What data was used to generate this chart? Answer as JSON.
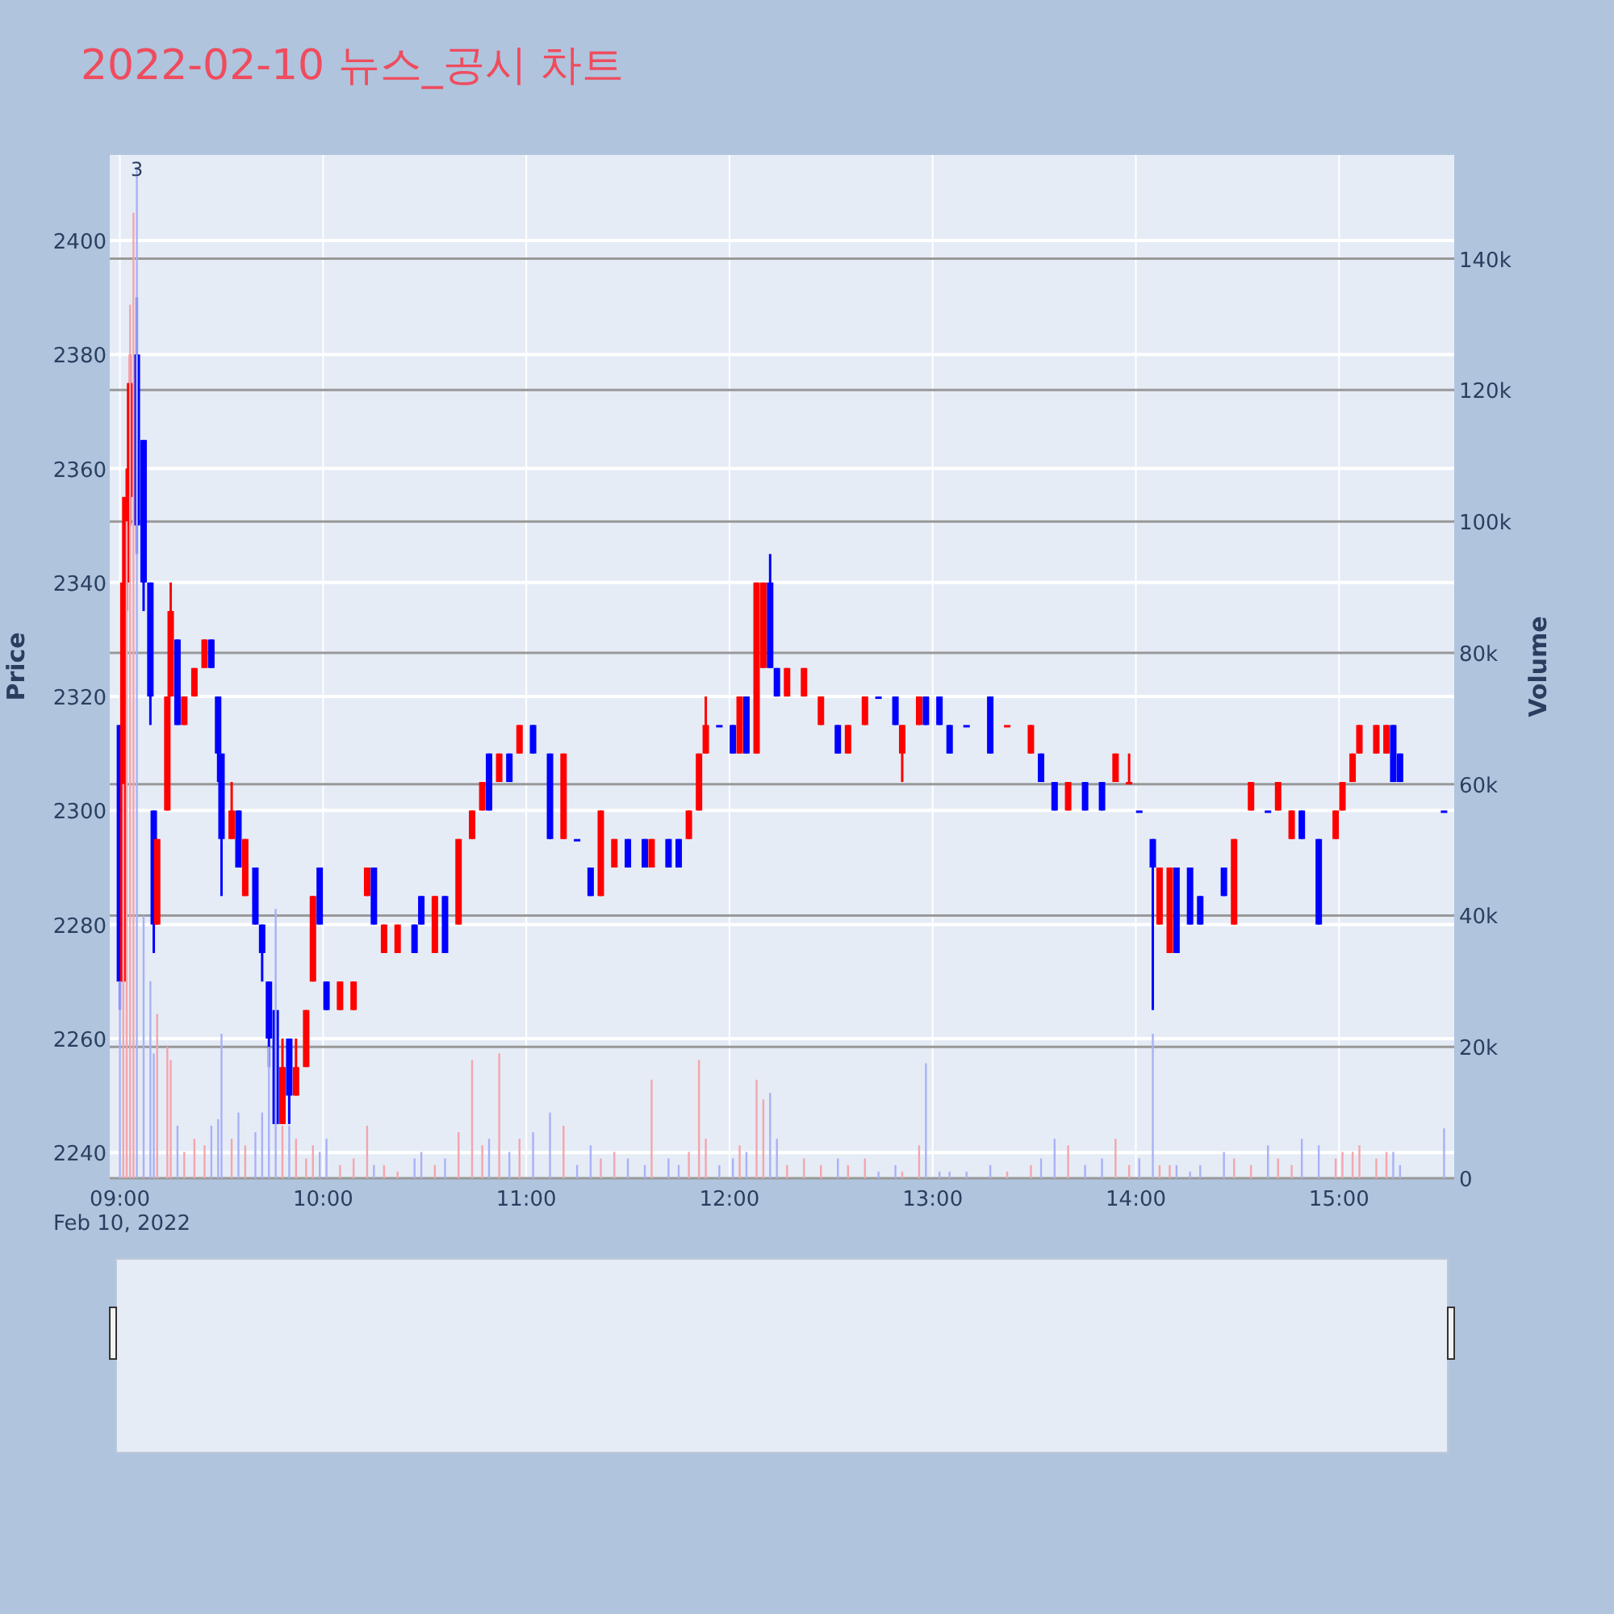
{
  "chart_data": {
    "type": "candlestick",
    "title": "2022-02-10 뉴스_공시 차트",
    "ylabel": "Price",
    "y2label": "Volume",
    "x": [
      "2022-02-10T09:00",
      "2022-02-10T09:01",
      "2022-02-10T09:02",
      "2022-02-10T09:03",
      "2022-02-10T09:04",
      "2022-02-10T09:05",
      "2022-02-10T09:07",
      "2022-02-10T09:09",
      "2022-02-10T09:10",
      "2022-02-10T09:11",
      "2022-02-10T09:14",
      "2022-02-10T09:15",
      "2022-02-10T09:17",
      "2022-02-10T09:19",
      "2022-02-10T09:22",
      "2022-02-10T09:25",
      "2022-02-10T09:27",
      "2022-02-10T09:29",
      "2022-02-10T09:30",
      "2022-02-10T09:33",
      "2022-02-10T09:35",
      "2022-02-10T09:37",
      "2022-02-10T09:40",
      "2022-02-10T09:42",
      "2022-02-10T09:44",
      "2022-02-10T09:46",
      "2022-02-10T09:48",
      "2022-02-10T09:50",
      "2022-02-10T09:52",
      "2022-02-10T09:55",
      "2022-02-10T09:57",
      "2022-02-10T09:59",
      "2022-02-10T10:01",
      "2022-02-10T10:05",
      "2022-02-10T10:09",
      "2022-02-10T10:13",
      "2022-02-10T10:15",
      "2022-02-10T10:18",
      "2022-02-10T10:22",
      "2022-02-10T10:27",
      "2022-02-10T10:29",
      "2022-02-10T10:33",
      "2022-02-10T10:36",
      "2022-02-10T10:40",
      "2022-02-10T10:44",
      "2022-02-10T10:47",
      "2022-02-10T10:49",
      "2022-02-10T10:52",
      "2022-02-10T10:55",
      "2022-02-10T10:58",
      "2022-02-10T11:02",
      "2022-02-10T11:07",
      "2022-02-10T11:11",
      "2022-02-10T11:15",
      "2022-02-10T11:19",
      "2022-02-10T11:22",
      "2022-02-10T11:26",
      "2022-02-10T11:30",
      "2022-02-10T11:35",
      "2022-02-10T11:37",
      "2022-02-10T11:42",
      "2022-02-10T11:45",
      "2022-02-10T11:48",
      "2022-02-10T11:51",
      "2022-02-10T11:53",
      "2022-02-10T11:57",
      "2022-02-10T12:01",
      "2022-02-10T12:03",
      "2022-02-10T12:05",
      "2022-02-10T12:08",
      "2022-02-10T12:10",
      "2022-02-10T12:12",
      "2022-02-10T12:14",
      "2022-02-10T12:17",
      "2022-02-10T12:22",
      "2022-02-10T12:27",
      "2022-02-10T12:32",
      "2022-02-10T12:35",
      "2022-02-10T12:40",
      "2022-02-10T12:44",
      "2022-02-10T12:49",
      "2022-02-10T12:51",
      "2022-02-10T12:56",
      "2022-02-10T12:58",
      "2022-02-10T13:02",
      "2022-02-10T13:05",
      "2022-02-10T13:10",
      "2022-02-10T13:17",
      "2022-02-10T13:22",
      "2022-02-10T13:29",
      "2022-02-10T13:32",
      "2022-02-10T13:36",
      "2022-02-10T13:40",
      "2022-02-10T13:45",
      "2022-02-10T13:50",
      "2022-02-10T13:54",
      "2022-02-10T13:58",
      "2022-02-10T14:01",
      "2022-02-10T14:05",
      "2022-02-10T14:07",
      "2022-02-10T14:10",
      "2022-02-10T14:12",
      "2022-02-10T14:16",
      "2022-02-10T14:19",
      "2022-02-10T14:26",
      "2022-02-10T14:29",
      "2022-02-10T14:34",
      "2022-02-10T14:39",
      "2022-02-10T14:42",
      "2022-02-10T14:46",
      "2022-02-10T14:49",
      "2022-02-10T14:54",
      "2022-02-10T14:59",
      "2022-02-10T15:01",
      "2022-02-10T15:04",
      "2022-02-10T15:06",
      "2022-02-10T15:11",
      "2022-02-10T15:14",
      "2022-02-10T15:16",
      "2022-02-10T15:18",
      "2022-02-10T15:31"
    ],
    "series": [
      {
        "ohlc": [
          [
            2315,
            2315,
            2265,
            2270
          ],
          [
            2270,
            2355,
            2270,
            2340
          ],
          [
            2340,
            2360,
            2335,
            2355
          ],
          [
            2355,
            2380,
            2350,
            2375
          ],
          null,
          [
            2380,
            2390,
            2345,
            2350
          ],
          [
            2365,
            2365,
            2335,
            2340
          ],
          [
            2340,
            2340,
            2315,
            2320
          ],
          [
            2300,
            2300,
            2275,
            2280
          ],
          [
            2280,
            2295,
            2280,
            2295
          ],
          [
            2300,
            2320,
            2300,
            2320
          ],
          [
            2320,
            2340,
            2320,
            2335
          ],
          [
            2330,
            2330,
            2315,
            2315
          ],
          [
            2315,
            2320,
            2315,
            2320
          ],
          [
            2320,
            2325,
            2320,
            2325
          ],
          [
            2325,
            2330,
            2325,
            2330
          ],
          [
            2330,
            2330,
            2325,
            2325
          ],
          [
            2320,
            2320,
            2305,
            2310
          ],
          [
            2310,
            2310,
            2285,
            2295
          ],
          [
            2295,
            2305,
            2295,
            2300
          ],
          [
            2300,
            2300,
            2290,
            2290
          ],
          [
            2285,
            2295,
            2285,
            2295
          ],
          [
            2290,
            2290,
            2280,
            2280
          ],
          [
            2280,
            2280,
            2270,
            2275
          ],
          [
            2270,
            2270,
            2255,
            2260
          ],
          [
            2265,
            2265,
            2245,
            2245
          ],
          [
            2245,
            2260,
            2245,
            2255
          ],
          [
            2260,
            2260,
            2245,
            2250
          ],
          [
            2250,
            2260,
            2250,
            2255
          ],
          [
            2255,
            2265,
            2255,
            2265
          ],
          [
            2270,
            2285,
            2270,
            2285
          ],
          [
            2290,
            2290,
            2280,
            2280
          ],
          [
            2270,
            2270,
            2265,
            2265
          ],
          [
            2265,
            2270,
            2265,
            2270
          ],
          [
            2265,
            2270,
            2265,
            2270
          ],
          [
            2285,
            2290,
            2285,
            2290
          ],
          [
            2290,
            2290,
            2280,
            2280
          ],
          [
            2275,
            2280,
            2275,
            2280
          ],
          [
            2275,
            2280,
            2275,
            2280
          ],
          [
            2280,
            2280,
            2275,
            2275
          ],
          [
            2285,
            2285,
            2280,
            2280
          ],
          [
            2275,
            2285,
            2275,
            2285
          ],
          [
            2285,
            2285,
            2275,
            2275
          ],
          [
            2280,
            2295,
            2280,
            2295
          ],
          [
            2295,
            2300,
            2295,
            2300
          ],
          [
            2300,
            2305,
            2300,
            2305
          ],
          [
            2310,
            2310,
            2300,
            2300
          ],
          [
            2305,
            2310,
            2305,
            2310
          ],
          [
            2310,
            2310,
            2305,
            2305
          ],
          [
            2310,
            2315,
            2310,
            2315
          ],
          [
            2315,
            2315,
            2310,
            2310
          ],
          [
            2310,
            2310,
            2295,
            2295
          ],
          [
            2295,
            2310,
            2295,
            2310
          ],
          [
            2295,
            2295,
            2295,
            2295
          ],
          [
            2290,
            2290,
            2285,
            2285
          ],
          [
            2285,
            2300,
            2285,
            2300
          ],
          [
            2290,
            2295,
            2290,
            2295
          ],
          [
            2295,
            2295,
            2290,
            2290
          ],
          [
            2295,
            2295,
            2290,
            2290
          ],
          [
            2290,
            2295,
            2290,
            2295
          ],
          [
            2295,
            2295,
            2290,
            2290
          ],
          [
            2295,
            2295,
            2290,
            2290
          ],
          [
            2295,
            2300,
            2295,
            2300
          ],
          [
            2300,
            2310,
            2300,
            2310
          ],
          [
            2310,
            2320,
            2310,
            2315
          ],
          [
            2315,
            2315,
            2315,
            2315
          ],
          [
            2315,
            2315,
            2310,
            2310
          ],
          [
            2310,
            2320,
            2310,
            2320
          ],
          [
            2320,
            2320,
            2310,
            2310
          ],
          [
            2310,
            2340,
            2310,
            2340
          ],
          [
            2325,
            2340,
            2325,
            2340
          ],
          [
            2340,
            2345,
            2325,
            2325
          ],
          [
            2325,
            2325,
            2320,
            2320
          ],
          [
            2320,
            2325,
            2320,
            2325
          ],
          [
            2320,
            2325,
            2320,
            2325
          ],
          [
            2315,
            2320,
            2315,
            2320
          ],
          [
            2315,
            2315,
            2310,
            2310
          ],
          [
            2310,
            2315,
            2310,
            2315
          ],
          [
            2315,
            2320,
            2315,
            2320
          ],
          [
            2320,
            2320,
            2320,
            2320
          ],
          [
            2320,
            2320,
            2315,
            2315
          ],
          [
            2310,
            2315,
            2305,
            2315
          ],
          [
            2315,
            2320,
            2315,
            2320
          ],
          [
            2320,
            2320,
            2315,
            2315
          ],
          [
            2320,
            2320,
            2315,
            2315
          ],
          [
            2315,
            2315,
            2310,
            2310
          ],
          [
            2315,
            2315,
            2315,
            2315
          ],
          [
            2320,
            2320,
            2310,
            2310
          ],
          [
            2315,
            2315,
            2315,
            2315
          ],
          [
            2310,
            2315,
            2310,
            2315
          ],
          [
            2310,
            2310,
            2305,
            2305
          ],
          [
            2305,
            2305,
            2300,
            2300
          ],
          [
            2300,
            2305,
            2300,
            2305
          ],
          [
            2305,
            2305,
            2300,
            2300
          ],
          [
            2305,
            2305,
            2300,
            2300
          ],
          [
            2305,
            2310,
            2305,
            2310
          ],
          [
            2305,
            2310,
            2305,
            2305
          ],
          [
            2300,
            2300,
            2300,
            2300
          ],
          [
            2295,
            2295,
            2265,
            2290
          ],
          [
            2280,
            2290,
            2280,
            2290
          ],
          [
            2275,
            2290,
            2275,
            2290
          ],
          [
            2290,
            2290,
            2275,
            2275
          ],
          [
            2290,
            2290,
            2280,
            2280
          ],
          [
            2285,
            2285,
            2280,
            2280
          ],
          [
            2290,
            2290,
            2285,
            2285
          ],
          [
            2280,
            2295,
            2280,
            2295
          ],
          [
            2300,
            2305,
            2300,
            2305
          ],
          [
            2300,
            2300,
            2300,
            2300
          ],
          [
            2300,
            2305,
            2300,
            2305
          ],
          [
            2295,
            2300,
            2295,
            2300
          ],
          [
            2300,
            2300,
            2295,
            2295
          ],
          [
            2295,
            2295,
            2280,
            2280
          ],
          [
            2295,
            2300,
            2295,
            2300
          ],
          [
            2300,
            2305,
            2300,
            2305
          ],
          [
            2305,
            2310,
            2305,
            2310
          ],
          [
            2310,
            2315,
            2310,
            2315
          ],
          [
            2310,
            2315,
            2310,
            2315
          ],
          [
            2310,
            2315,
            2310,
            2315
          ],
          [
            2315,
            2315,
            2305,
            2305
          ],
          [
            2310,
            2310,
            2305,
            2305
          ],
          [
            2300,
            2300,
            2300,
            2300
          ]
        ],
        "colors": [
          "#0000ff",
          "#ff0000",
          "#ff0000",
          "#ff0000",
          null,
          "#0000ff",
          "#0000ff",
          "#0000ff",
          "#0000ff",
          "#ff0000",
          "#ff0000",
          "#ff0000",
          "#0000ff",
          "#ff0000",
          "#ff0000",
          "#ff0000",
          "#0000ff",
          "#0000ff",
          "#0000ff",
          "#ff0000",
          "#0000ff",
          "#ff0000",
          "#0000ff",
          "#0000ff",
          "#0000ff",
          "#0000ff",
          "#ff0000",
          "#0000ff",
          "#ff0000",
          "#ff0000",
          "#ff0000",
          "#0000ff",
          "#0000ff",
          "#ff0000",
          "#ff0000",
          "#ff0000",
          "#0000ff",
          "#ff0000",
          "#ff0000",
          "#0000ff",
          "#0000ff",
          "#ff0000",
          "#0000ff",
          "#ff0000",
          "#ff0000",
          "#ff0000",
          "#0000ff",
          "#ff0000",
          "#0000ff",
          "#ff0000",
          "#0000ff",
          "#0000ff",
          "#ff0000",
          "#0000ff",
          "#0000ff",
          "#ff0000",
          "#ff0000",
          "#0000ff",
          "#0000ff",
          "#ff0000",
          "#0000ff",
          "#0000ff",
          "#ff0000",
          "#ff0000",
          "#ff0000",
          "#0000ff",
          "#0000ff",
          "#ff0000",
          "#0000ff",
          "#ff0000",
          "#ff0000",
          "#0000ff",
          "#0000ff",
          "#ff0000",
          "#ff0000",
          "#ff0000",
          "#0000ff",
          "#ff0000",
          "#ff0000",
          "#0000ff",
          "#0000ff",
          "#ff0000",
          "#ff0000",
          "#0000ff",
          "#0000ff",
          "#0000ff",
          "#0000ff",
          "#0000ff",
          "#ff0000",
          "#ff0000",
          "#0000ff",
          "#0000ff",
          "#ff0000",
          "#0000ff",
          "#0000ff",
          "#ff0000",
          "#ff0000",
          "#0000ff",
          "#0000ff",
          "#ff0000",
          "#ff0000",
          "#0000ff",
          "#0000ff",
          "#0000ff",
          "#0000ff",
          "#ff0000",
          "#ff0000",
          "#0000ff",
          "#ff0000",
          "#ff0000",
          "#0000ff",
          "#0000ff",
          "#ff0000",
          "#ff0000",
          "#ff0000",
          "#ff0000",
          "#ff0000",
          "#ff0000",
          "#0000ff",
          "#0000ff",
          "#0000ff"
        ]
      },
      {
        "type": "bar",
        "axis": "y2",
        "values": [
          30000,
          60000,
          100000,
          133000,
          147000,
          154000,
          40000,
          30000,
          19000,
          25000,
          20000,
          18000,
          8000,
          4000,
          6000,
          5000,
          8000,
          9000,
          22000,
          6000,
          10000,
          5000,
          7000,
          10000,
          20000,
          41000,
          8000,
          8000,
          6000,
          3000,
          5000,
          4000,
          6000,
          2000,
          3000,
          8000,
          2000,
          2000,
          1000,
          3000,
          4000,
          2000,
          3000,
          7000,
          18000,
          5000,
          6000,
          19000,
          4000,
          6000,
          7000,
          10000,
          8000,
          2000,
          5000,
          3000,
          4000,
          3000,
          2000,
          15000,
          3000,
          2000,
          4000,
          18000,
          6000,
          2000,
          3000,
          5000,
          4000,
          15000,
          12000,
          13000,
          6000,
          2000,
          3000,
          2000,
          3000,
          2000,
          3000,
          1000,
          2000,
          1000,
          5000,
          17500,
          1000,
          1000,
          1000,
          2000,
          1000,
          2000,
          3000,
          6000,
          5000,
          2000,
          3000,
          6000,
          2000,
          3000,
          22000,
          2000,
          2000,
          2000,
          1000,
          2000,
          4000,
          3000,
          2000,
          5000,
          3000,
          2000,
          6000,
          5000,
          3000,
          4000,
          4000,
          5000,
          3000,
          4000,
          4000,
          2000,
          7600
        ],
        "colors": [
          "#a9b1f6",
          "#f4a5ad",
          "#f4a5ad",
          "#f4a5ad",
          "#f4a5ad",
          "#a9b1f6",
          "#a9b1f6",
          "#a9b1f6",
          "#a9b1f6",
          "#f4a5ad",
          "#f4a5ad",
          "#f4a5ad",
          "#a9b1f6",
          "#f4a5ad",
          "#f4a5ad",
          "#f4a5ad",
          "#a9b1f6",
          "#a9b1f6",
          "#a9b1f6",
          "#f4a5ad",
          "#a9b1f6",
          "#f4a5ad",
          "#a9b1f6",
          "#a9b1f6",
          "#a9b1f6",
          "#a9b1f6",
          "#f4a5ad",
          "#a9b1f6",
          "#f4a5ad",
          "#f4a5ad",
          "#f4a5ad",
          "#a9b1f6",
          "#a9b1f6",
          "#f4a5ad",
          "#f4a5ad",
          "#f4a5ad",
          "#a9b1f6",
          "#f4a5ad",
          "#f4a5ad",
          "#a9b1f6",
          "#a9b1f6",
          "#f4a5ad",
          "#a9b1f6",
          "#f4a5ad",
          "#f4a5ad",
          "#f4a5ad",
          "#a9b1f6",
          "#f4a5ad",
          "#a9b1f6",
          "#f4a5ad",
          "#a9b1f6",
          "#a9b1f6",
          "#f4a5ad",
          "#a9b1f6",
          "#a9b1f6",
          "#f4a5ad",
          "#f4a5ad",
          "#a9b1f6",
          "#a9b1f6",
          "#f4a5ad",
          "#a9b1f6",
          "#a9b1f6",
          "#f4a5ad",
          "#f4a5ad",
          "#f4a5ad",
          "#a9b1f6",
          "#a9b1f6",
          "#f4a5ad",
          "#a9b1f6",
          "#f4a5ad",
          "#f4a5ad",
          "#a9b1f6",
          "#a9b1f6",
          "#f4a5ad",
          "#f4a5ad",
          "#f4a5ad",
          "#a9b1f6",
          "#f4a5ad",
          "#f4a5ad",
          "#a9b1f6",
          "#a9b1f6",
          "#f4a5ad",
          "#f4a5ad",
          "#a9b1f6",
          "#a9b1f6",
          "#a9b1f6",
          "#a9b1f6",
          "#a9b1f6",
          "#f4a5ad",
          "#f4a5ad",
          "#a9b1f6",
          "#a9b1f6",
          "#f4a5ad",
          "#a9b1f6",
          "#a9b1f6",
          "#f4a5ad",
          "#f4a5ad",
          "#a9b1f6",
          "#a9b1f6",
          "#f4a5ad",
          "#f4a5ad",
          "#a9b1f6",
          "#a9b1f6",
          "#a9b1f6",
          "#a9b1f6",
          "#f4a5ad",
          "#f4a5ad",
          "#a9b1f6",
          "#f4a5ad",
          "#f4a5ad",
          "#a9b1f6",
          "#a9b1f6",
          "#f4a5ad",
          "#f4a5ad",
          "#f4a5ad",
          "#f4a5ad",
          "#f4a5ad",
          "#f4a5ad",
          "#a9b1f6",
          "#a9b1f6",
          "#a9b1f6"
        ]
      }
    ],
    "xlim": [
      "2022-02-10T08:57",
      "2022-02-10T15:34"
    ],
    "xticks": [
      {
        "value": "2022-02-10T09:00",
        "label": "09:00"
      },
      {
        "value": "2022-02-10T10:00",
        "label": "10:00"
      },
      {
        "value": "2022-02-10T11:00",
        "label": "11:00"
      },
      {
        "value": "2022-02-10T12:00",
        "label": "12:00"
      },
      {
        "value": "2022-02-10T13:00",
        "label": "13:00"
      },
      {
        "value": "2022-02-10T14:00",
        "label": "14:00"
      },
      {
        "value": "2022-02-10T15:00",
        "label": "15:00"
      }
    ],
    "ylim": [
      2235.5,
      2415
    ],
    "yticks": [
      2240,
      2260,
      2280,
      2300,
      2320,
      2340,
      2360,
      2380,
      2400
    ],
    "y2lim": [
      0,
      155800
    ],
    "y2ticks": [
      0,
      {
        "value": 20000,
        "label": "20k"
      },
      {
        "value": 40000,
        "label": "40k"
      },
      {
        "value": 60000,
        "label": "60k"
      },
      {
        "value": 80000,
        "label": "80k"
      },
      {
        "value": 100000,
        "label": "100k"
      },
      {
        "value": 120000,
        "label": "120k"
      },
      {
        "value": 140000,
        "label": "140k"
      }
    ],
    "grid": true,
    "annotations": [
      {
        "text": "3",
        "x": "2022-02-10T09:05",
        "y": 2413
      },
      "Feb 10, 2022"
    ]
  }
}
